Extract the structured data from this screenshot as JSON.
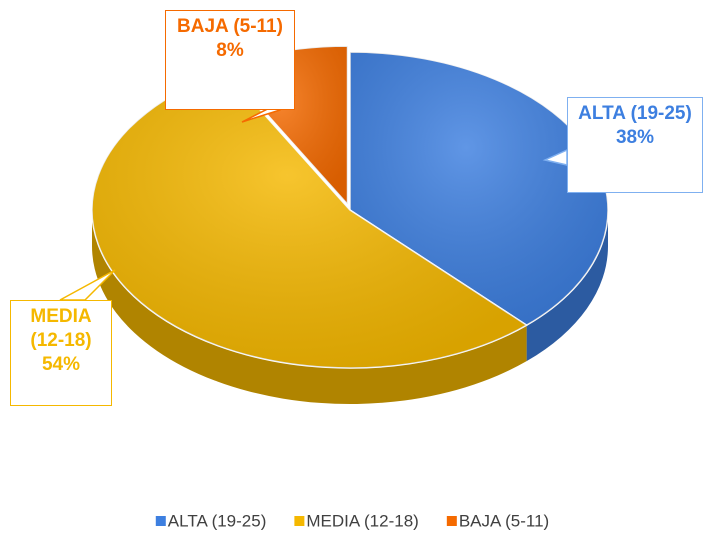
{
  "chart_data": {
    "type": "pie",
    "categories": [
      "ALTA (19-25)",
      "MEDIA (12-18)",
      "BAJA (5-11)"
    ],
    "values": [
      38,
      54,
      8
    ],
    "value_labels": [
      "38%",
      "54%",
      "8%"
    ],
    "colors": [
      "#3d7fe0",
      "#f5b800",
      "#f56a00"
    ],
    "legend": "bottom"
  }
}
